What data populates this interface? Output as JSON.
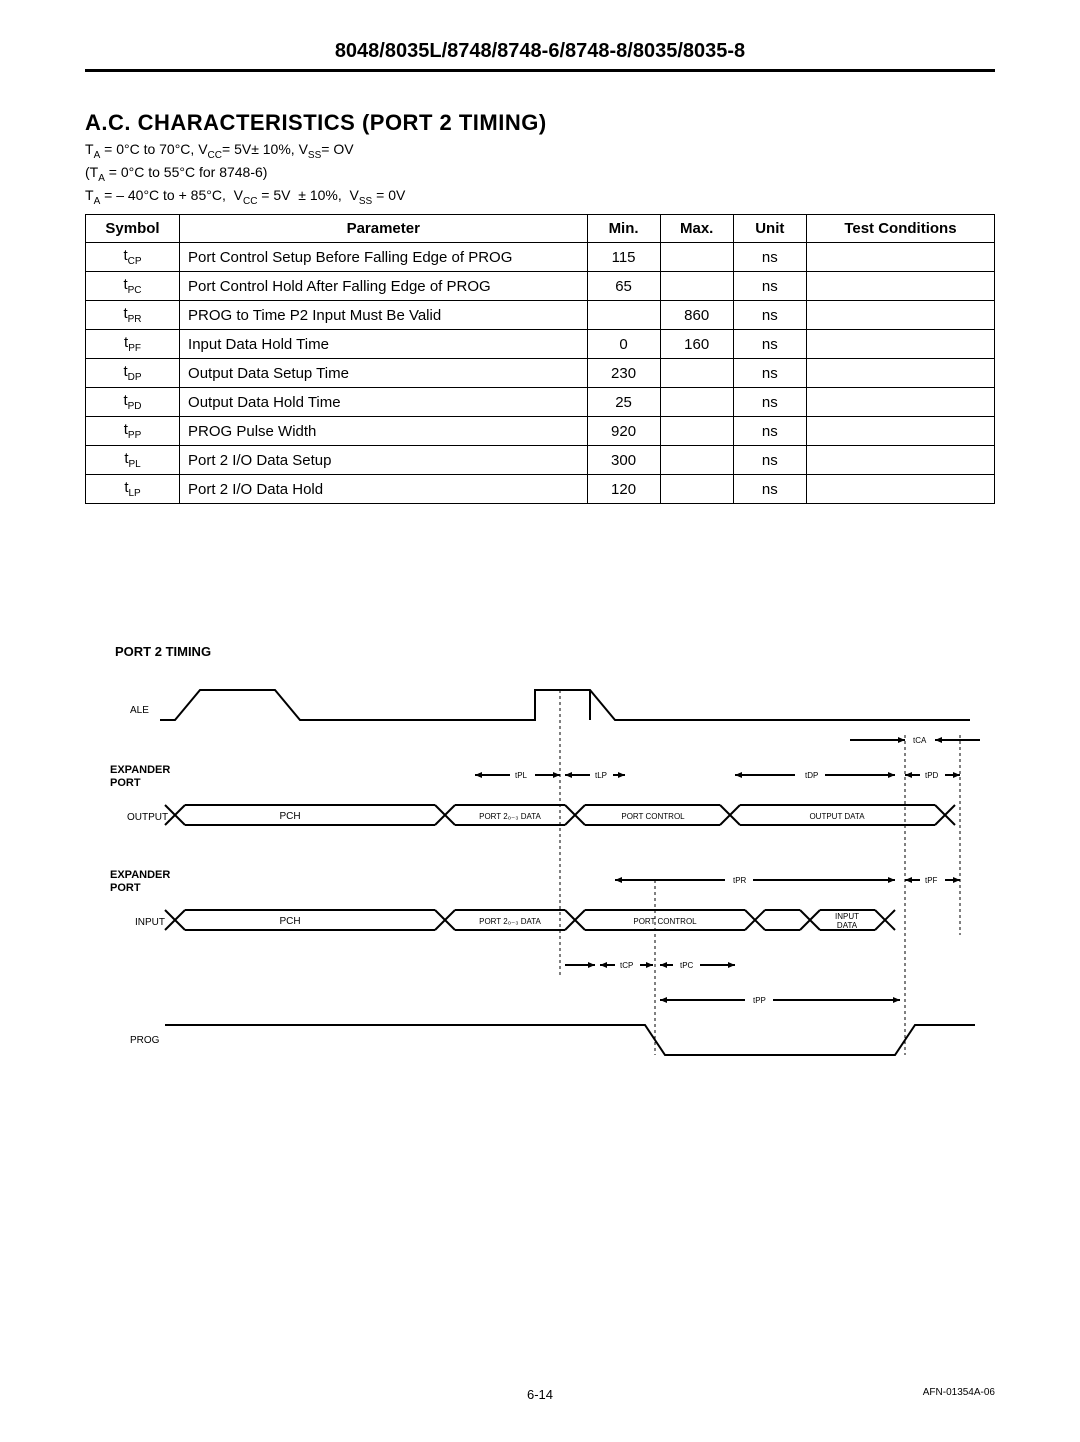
{
  "header": {
    "title": "8048/8035L/8748/8748-6/8748-8/8035/8035-8"
  },
  "section": {
    "title": "A.C. CHARACTERISTICS (PORT 2 TIMING)",
    "cond1": "T_A = 0°C to 70°C, V_CC= 5V± 10%, V_SS= OV",
    "cond2": "(T_A = 0°C to 55°C for 8748-6)",
    "cond3": "T_A = – 40°C to + 85°C,  V_CC = 5V  ± 10%,  V_SS = 0V"
  },
  "table": {
    "headers": [
      "Symbol",
      "Parameter",
      "Min.",
      "Max.",
      "Unit",
      "Test Conditions"
    ],
    "rows": [
      {
        "sym_base": "t",
        "sym_sub": "CP",
        "param": "Port Control Setup Before Falling Edge of PROG",
        "min": "115",
        "max": "",
        "unit": "ns",
        "test": ""
      },
      {
        "sym_base": "t",
        "sym_sub": "PC",
        "param": "Port Control Hold After Falling Edge of PROG",
        "min": "65",
        "max": "",
        "unit": "ns",
        "test": ""
      },
      {
        "sym_base": "t",
        "sym_sub": "PR",
        "param": "PROG to Time P2 Input Must Be Valid",
        "min": "",
        "max": "860",
        "unit": "ns",
        "test": ""
      },
      {
        "sym_base": "t",
        "sym_sub": "PF",
        "param": "Input Data Hold Time",
        "min": "0",
        "max": "160",
        "unit": "ns",
        "test": ""
      },
      {
        "sym_base": "t",
        "sym_sub": "DP",
        "param": "Output Data Setup Time",
        "min": "230",
        "max": "",
        "unit": "ns",
        "test": ""
      },
      {
        "sym_base": "t",
        "sym_sub": "PD",
        "param": "Output Data Hold Time",
        "min": "25",
        "max": "",
        "unit": "ns",
        "test": ""
      },
      {
        "sym_base": "t",
        "sym_sub": "PP",
        "param": "PROG Pulse Width",
        "min": "920",
        "max": "",
        "unit": "ns",
        "test": ""
      },
      {
        "sym_base": "t",
        "sym_sub": "PL",
        "param": "Port 2 I/O Data Setup",
        "min": "300",
        "max": "",
        "unit": "ns",
        "test": ""
      },
      {
        "sym_base": "t",
        "sym_sub": "LP",
        "param": "Port 2 I/O Data Hold",
        "min": "120",
        "max": "",
        "unit": "ns",
        "test": ""
      }
    ]
  },
  "timing": {
    "title": "PORT 2 TIMING",
    "signals": {
      "ale": "ALE",
      "expander_port": "EXPANDER PORT",
      "output": "OUTPUT",
      "input": "INPUT",
      "prog": "PROG"
    },
    "blocks": {
      "pch": "PCH",
      "port2_data": "PORT 2₀₋₃ DATA",
      "port_control": "PORT CONTROL",
      "output_data": "OUTPUT DATA",
      "input_data": "INPUT DATA"
    },
    "labels": {
      "tca": "tCA",
      "tpl": "tPL",
      "tlp": "tLP",
      "tdp": "tDP",
      "tpd": "tPD",
      "tpr": "tPR",
      "tpf": "tPF",
      "tcp": "tCP",
      "tpc": "tPC",
      "tpp": "tPP"
    },
    "style": {
      "stroke": "#000000",
      "stroke_width": 2,
      "font": "Arial"
    }
  },
  "footer": {
    "page": "6-14",
    "docnum": "AFN-01354A-06"
  }
}
